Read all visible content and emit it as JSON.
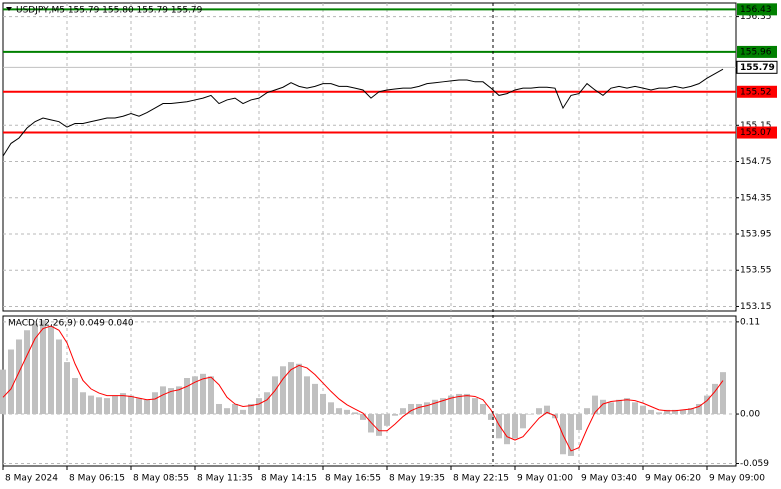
{
  "chart_data": [
    {
      "type": "line",
      "title": "USDJPY,M5  155.79 155.80 155.79 155.79",
      "color": "#000000",
      "categories": [
        "8 May 2024",
        null,
        null,
        null,
        null,
        null,
        null,
        null,
        "8 May 06:15",
        null,
        null,
        null,
        null,
        null,
        null,
        null,
        "8 May 08:55",
        null,
        null,
        null,
        null,
        null,
        null,
        null,
        "8 May 11:35",
        null,
        null,
        null,
        null,
        null,
        null,
        null,
        "8 May 14:15",
        null,
        null,
        null,
        null,
        null,
        null,
        null,
        "8 May 16:55",
        null,
        null,
        null,
        null,
        null,
        null,
        null,
        "8 May 19:35",
        null,
        null,
        null,
        null,
        null,
        null,
        null,
        "8 May 22:15",
        null,
        null,
        null,
        null,
        null,
        null,
        null,
        "9 May 01:00",
        null,
        null,
        null,
        null,
        null,
        null,
        null,
        "9 May 03:40",
        null,
        null,
        null,
        null,
        null,
        null,
        null,
        "9 May 06:20",
        null,
        null,
        null,
        null,
        null,
        null,
        null,
        "9 May 09:00",
        null,
        null
      ],
      "values": [
        154.81,
        154.95,
        155.01,
        155.12,
        155.19,
        155.23,
        155.21,
        155.19,
        155.13,
        155.17,
        155.17,
        155.19,
        155.21,
        155.23,
        155.23,
        155.25,
        155.28,
        155.25,
        155.29,
        155.34,
        155.39,
        155.39,
        155.4,
        155.41,
        155.43,
        155.45,
        155.48,
        155.39,
        155.43,
        155.45,
        155.39,
        155.43,
        155.45,
        155.51,
        155.54,
        155.57,
        155.62,
        155.58,
        155.56,
        155.58,
        155.61,
        155.61,
        155.58,
        155.58,
        155.56,
        155.54,
        155.45,
        155.52,
        155.54,
        155.55,
        155.56,
        155.56,
        155.58,
        155.61,
        155.62,
        155.63,
        155.64,
        155.65,
        155.65,
        155.63,
        155.63,
        155.56,
        155.48,
        155.5,
        155.54,
        155.56,
        155.56,
        155.57,
        155.57,
        155.56,
        155.34,
        155.48,
        155.5,
        155.61,
        155.54,
        155.48,
        155.56,
        155.58,
        155.56,
        155.58,
        155.56,
        155.54,
        155.56,
        155.56,
        155.58,
        155.56,
        155.58,
        155.61,
        155.67,
        155.72,
        155.77
      ],
      "ylim": [
        153.1,
        156.5
      ],
      "yticks": [
        156.35,
        155.15,
        154.75,
        154.35,
        153.95,
        153.55,
        153.15
      ],
      "grid": true,
      "levels": [
        {
          "value": 156.43,
          "color": "#008000"
        },
        {
          "value": 155.96,
          "color": "#008000"
        },
        {
          "value": 155.52,
          "color": "#ff0000"
        },
        {
          "value": 155.07,
          "color": "#ff0000"
        }
      ],
      "last": {
        "value": 155.79,
        "color": "#c0c0c0"
      }
    },
    {
      "type": "macd",
      "title": "MACD(12,26,9) 0.049 0.040",
      "histogram": {
        "color": "#c0c0c0",
        "values": [
          0.053,
          0.077,
          0.089,
          0.1,
          0.108,
          0.112,
          0.105,
          0.089,
          0.062,
          0.043,
          0.026,
          0.022,
          0.02,
          0.019,
          0.022,
          0.025,
          0.022,
          0.019,
          0.017,
          0.026,
          0.033,
          0.031,
          0.033,
          0.043,
          0.045,
          0.048,
          0.045,
          0.012,
          0.007,
          0.012,
          0.005,
          0.012,
          0.019,
          0.026,
          0.045,
          0.057,
          0.062,
          0.06,
          0.045,
          0.036,
          0.024,
          0.014,
          0.007,
          0.005,
          0.002,
          -0.007,
          -0.022,
          -0.026,
          -0.014,
          -0.002,
          0.007,
          0.012,
          0.012,
          0.014,
          0.017,
          0.019,
          0.022,
          0.024,
          0.024,
          0.019,
          0.012,
          -0.007,
          -0.029,
          -0.036,
          -0.029,
          -0.017,
          0.0,
          0.007,
          0.01,
          -0.005,
          -0.048,
          -0.05,
          -0.019,
          0.007,
          0.022,
          0.017,
          0.014,
          0.017,
          0.019,
          0.014,
          0.01,
          0.005,
          0.002,
          0.005,
          0.005,
          0.005,
          0.007,
          0.012,
          0.022,
          0.036,
          0.05
        ]
      },
      "signal": {
        "color": "#ff0000",
        "values": [
          0.02,
          0.03,
          0.05,
          0.07,
          0.09,
          0.102,
          0.105,
          0.1,
          0.085,
          0.06,
          0.04,
          0.03,
          0.025,
          0.022,
          0.022,
          0.022,
          0.021,
          0.019,
          0.017,
          0.018,
          0.023,
          0.027,
          0.029,
          0.033,
          0.038,
          0.042,
          0.044,
          0.035,
          0.02,
          0.012,
          0.009,
          0.01,
          0.012,
          0.017,
          0.028,
          0.042,
          0.053,
          0.058,
          0.055,
          0.047,
          0.037,
          0.027,
          0.018,
          0.011,
          0.006,
          0.001,
          -0.01,
          -0.02,
          -0.02,
          -0.012,
          -0.003,
          0.004,
          0.008,
          0.01,
          0.013,
          0.016,
          0.019,
          0.021,
          0.022,
          0.021,
          0.017,
          0.005,
          -0.013,
          -0.027,
          -0.031,
          -0.027,
          -0.016,
          -0.005,
          0.002,
          -0.002,
          -0.025,
          -0.044,
          -0.04,
          -0.018,
          0.002,
          0.012,
          0.015,
          0.016,
          0.017,
          0.016,
          0.013,
          0.009,
          0.005,
          0.004,
          0.004,
          0.005,
          0.006,
          0.009,
          0.016,
          0.027,
          0.04
        ]
      },
      "ylim": [
        -0.062,
        0.117
      ],
      "yticks": [
        0.11,
        {
          "value": 0,
          "label": "0.00"
        },
        -0.059
      ],
      "grid": true
    }
  ]
}
